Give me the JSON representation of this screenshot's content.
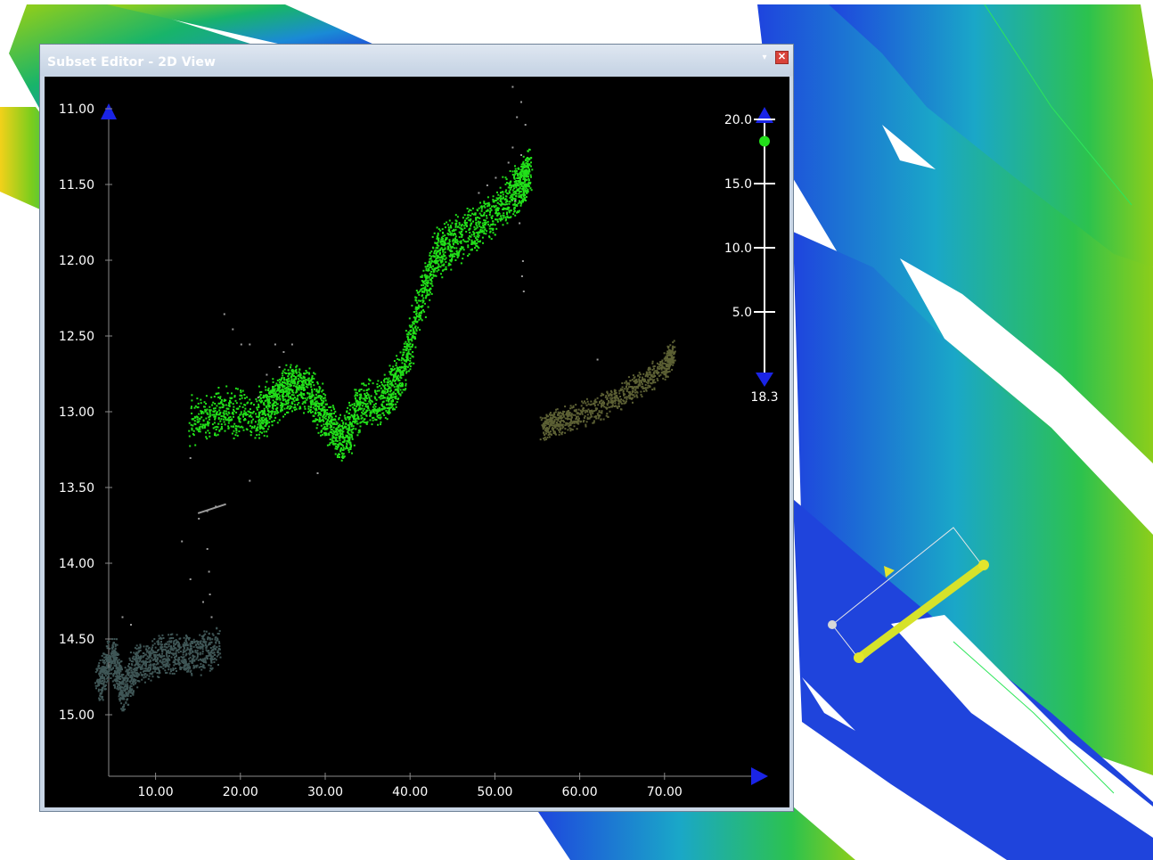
{
  "window": {
    "title": "Subset Editor - 2D View",
    "menu_glyph": "▾",
    "close_glyph": "✕"
  },
  "y_axis": {
    "labels": [
      "11.00",
      "11.50",
      "12.00",
      "12.50",
      "13.00",
      "13.50",
      "14.00",
      "14.50",
      "15.00"
    ],
    "values": [
      11.0,
      11.5,
      12.0,
      12.5,
      13.0,
      13.5,
      14.0,
      14.5,
      15.0
    ]
  },
  "x_axis": {
    "labels": [
      "10.00",
      "20.00",
      "30.00",
      "40.00",
      "50.00",
      "60.00",
      "70.00"
    ],
    "values": [
      10,
      20,
      30,
      40,
      50,
      60,
      70
    ]
  },
  "slider": {
    "tick_labels": [
      "20.0",
      "15.0",
      "10.0",
      "5.0"
    ],
    "tick_values": [
      20,
      15,
      10,
      5
    ],
    "current_value_label": "18.3",
    "current_value": 18.3
  },
  "colors": {
    "selected_points": "#22e01a",
    "outlier_points": "#9a9a9a",
    "left_dataset": "#3f5656",
    "right_dataset": "#5c6034",
    "axis": "#8a8a8a",
    "arrows": "#1a24e6",
    "slider_marker": "#22e01a"
  },
  "icons": {
    "axis_arrow": "triangle-arrow-icon",
    "slider_handle": "green-dot-icon"
  }
}
